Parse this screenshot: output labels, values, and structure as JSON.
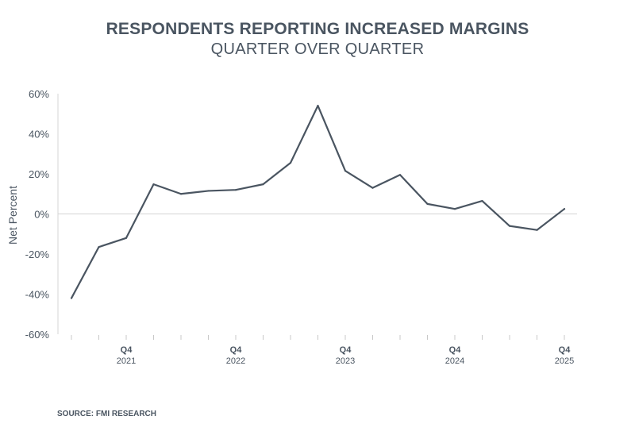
{
  "chart_data": {
    "type": "line",
    "title": "RESPONDENTS REPORTING INCREASED MARGINS",
    "subtitle": "QUARTER OVER QUARTER",
    "xlabel": "",
    "ylabel": "Net Percent",
    "ylim": [
      -60,
      60
    ],
    "y_ticks": [
      60,
      40,
      20,
      0,
      -20,
      -40,
      -60
    ],
    "y_tick_labels": [
      "60%",
      "40%",
      "20%",
      "0%",
      "-20%",
      "-40%",
      "-60%"
    ],
    "x_ticks": [
      {
        "index": 2,
        "quarter": "Q4",
        "year": "2021"
      },
      {
        "index": 6,
        "quarter": "Q4",
        "year": "2022"
      },
      {
        "index": 10,
        "quarter": "Q4",
        "year": "2023"
      },
      {
        "index": 14,
        "quarter": "Q4",
        "year": "2024"
      },
      {
        "index": 18,
        "quarter": "Q4",
        "year": "2025"
      }
    ],
    "values": [
      -42,
      -16.5,
      -12,
      14.8,
      10,
      11.5,
      12,
      14.8,
      25.5,
      54,
      21.5,
      13,
      19.5,
      5,
      2.5,
      6.5,
      -6,
      -8,
      2.5
    ],
    "line_color": "#4a5561",
    "grid": false,
    "legend": "none"
  },
  "source": "SOURCE: FMI RESEARCH"
}
